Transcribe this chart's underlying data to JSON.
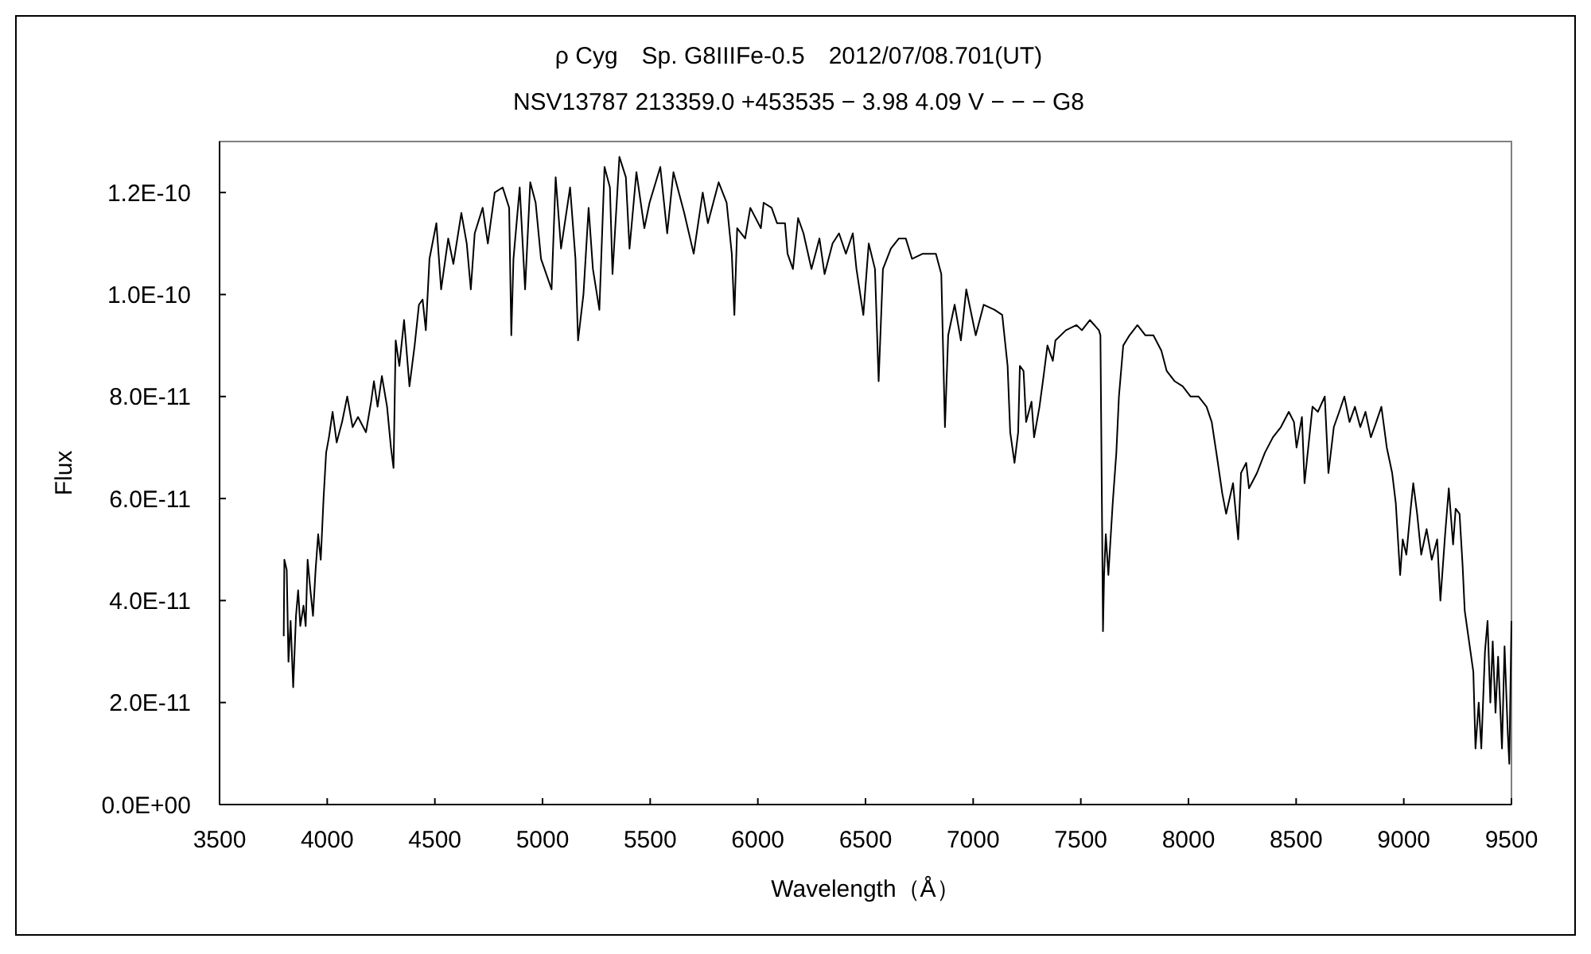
{
  "chart_data": {
    "type": "line",
    "title": "ρ Cyg　Sp. G8IIIFe-0.5　2012/07/08.701(UT)",
    "subtitle": "NSV13787 213359.0 +453535 − 3.98 4.09 V − − − G8",
    "xlabel": "Wavelength（Å）",
    "ylabel": "Flux",
    "xlim": [
      3500,
      9500
    ],
    "xticks": [
      3500,
      4000,
      4500,
      5000,
      5500,
      6000,
      6500,
      7000,
      7500,
      8000,
      8500,
      9000,
      9500
    ],
    "ylim": [
      0,
      1.3e-10
    ],
    "yticks": [
      {
        "value": 0,
        "label": "0.0E+00"
      },
      {
        "value": 2e-11,
        "label": "2.0E-11"
      },
      {
        "value": 4e-11,
        "label": "4.0E-11"
      },
      {
        "value": 6e-11,
        "label": "6.0E-11"
      },
      {
        "value": 8e-11,
        "label": "8.0E-11"
      },
      {
        "value": 1e-10,
        "label": "1.0E-10"
      },
      {
        "value": 1.2e-10,
        "label": "1.2E-10"
      }
    ],
    "x": [
      3798,
      3801,
      3812,
      3820,
      3830,
      3842,
      3855,
      3865,
      3875,
      3890,
      3900,
      3909,
      3922,
      3934,
      3946,
      3958,
      3970,
      3983,
      3995,
      4008,
      4025,
      4044,
      4069,
      4093,
      4118,
      4143,
      4180,
      4204,
      4217,
      4234,
      4254,
      4278,
      4296,
      4308,
      4318,
      4335,
      4357,
      4382,
      4406,
      4426,
      4443,
      4458,
      4475,
      4507,
      4529,
      4562,
      4586,
      4623,
      4648,
      4667,
      4685,
      4722,
      4746,
      4778,
      4815,
      4845,
      4855,
      4865,
      4894,
      4919,
      4943,
      4968,
      4993,
      5042,
      5061,
      5086,
      5128,
      5153,
      5165,
      5190,
      5214,
      5234,
      5264,
      5288,
      5313,
      5325,
      5357,
      5387,
      5404,
      5436,
      5473,
      5497,
      5547,
      5579,
      5608,
      5658,
      5702,
      5744,
      5768,
      5818,
      5855,
      5879,
      5891,
      5904,
      5941,
      5965,
      6014,
      6027,
      6064,
      6089,
      6126,
      6138,
      6163,
      6187,
      6212,
      6249,
      6286,
      6310,
      6347,
      6377,
      6409,
      6441,
      6458,
      6490,
      6515,
      6544,
      6561,
      6581,
      6618,
      6655,
      6687,
      6716,
      6766,
      6827,
      6852,
      6869,
      6884,
      6914,
      6943,
      6968,
      7012,
      7049,
      7099,
      7135,
      7160,
      7172,
      7192,
      7209,
      7217,
      7234,
      7246,
      7271,
      7283,
      7308,
      7327,
      7345,
      7370,
      7382,
      7431,
      7480,
      7505,
      7542,
      7584,
      7591,
      7599,
      7603,
      7608,
      7616,
      7628,
      7648,
      7665,
      7677,
      7697,
      7726,
      7763,
      7800,
      7837,
      7874,
      7899,
      7936,
      7973,
      8010,
      8047,
      8084,
      8108,
      8133,
      8157,
      8175,
      8207,
      8231,
      8244,
      8268,
      8281,
      8318,
      8355,
      8392,
      8429,
      8466,
      8490,
      8502,
      8527,
      8539,
      8576,
      8601,
      8633,
      8650,
      8675,
      8700,
      8724,
      8748,
      8773,
      8798,
      8822,
      8847,
      8872,
      8896,
      8921,
      8946,
      8963,
      8983,
      8995,
      9012,
      9032,
      9044,
      9062,
      9081,
      9106,
      9130,
      9155,
      9170,
      9192,
      9209,
      9229,
      9241,
      9259,
      9273,
      9283,
      9303,
      9323,
      9333,
      9348,
      9360,
      9377,
      9389,
      9402,
      9413,
      9426,
      9438,
      9456,
      9468,
      9483,
      9490,
      9500
    ],
    "series": [
      {
        "color": "#000000",
        "values": [
          3.3e-11,
          4.8e-11,
          4.6e-11,
          2.8e-11,
          3.6e-11,
          2.3e-11,
          3.7e-11,
          4.2e-11,
          3.5e-11,
          3.9e-11,
          3.5e-11,
          4.8e-11,
          4.2e-11,
          3.7e-11,
          4.6e-11,
          5.3e-11,
          4.8e-11,
          6e-11,
          6.9e-11,
          7.2e-11,
          7.7e-11,
          7.1e-11,
          7.5e-11,
          8e-11,
          7.4e-11,
          7.6e-11,
          7.3e-11,
          7.9e-11,
          8.3e-11,
          7.8e-11,
          8.4e-11,
          7.8e-11,
          7e-11,
          6.6e-11,
          9.1e-11,
          8.6e-11,
          9.5e-11,
          8.2e-11,
          9e-11,
          9.8e-11,
          9.9e-11,
          9.3e-11,
          1.07e-10,
          1.14e-10,
          1.01e-10,
          1.11e-10,
          1.06e-10,
          1.16e-10,
          1.1e-10,
          1.01e-10,
          1.12e-10,
          1.17e-10,
          1.1e-10,
          1.2e-10,
          1.21e-10,
          1.17e-10,
          9.2e-11,
          1.07e-10,
          1.21e-10,
          1.01e-10,
          1.22e-10,
          1.18e-10,
          1.07e-10,
          1.01e-10,
          1.23e-10,
          1.09e-10,
          1.21e-10,
          1.07e-10,
          9.1e-11,
          1e-10,
          1.17e-10,
          1.05e-10,
          9.7e-11,
          1.25e-10,
          1.21e-10,
          1.04e-10,
          1.27e-10,
          1.23e-10,
          1.09e-10,
          1.24e-10,
          1.13e-10,
          1.18e-10,
          1.25e-10,
          1.12e-10,
          1.24e-10,
          1.16e-10,
          1.08e-10,
          1.2e-10,
          1.14e-10,
          1.22e-10,
          1.18e-10,
          1.08e-10,
          9.6e-11,
          1.13e-10,
          1.11e-10,
          1.17e-10,
          1.13e-10,
          1.18e-10,
          1.17e-10,
          1.14e-10,
          1.14e-10,
          1.08e-10,
          1.05e-10,
          1.15e-10,
          1.12e-10,
          1.05e-10,
          1.11e-10,
          1.04e-10,
          1.1e-10,
          1.12e-10,
          1.08e-10,
          1.12e-10,
          1.05e-10,
          9.6e-11,
          1.1e-10,
          1.05e-10,
          8.3e-11,
          1.05e-10,
          1.09e-10,
          1.11e-10,
          1.11e-10,
          1.07e-10,
          1.08e-10,
          1.08e-10,
          1.04e-10,
          7.4e-11,
          9.2e-11,
          9.8e-11,
          9.1e-11,
          1.01e-10,
          9.2e-11,
          9.8e-11,
          9.7e-11,
          9.6e-11,
          8.6e-11,
          7.3e-11,
          6.7e-11,
          7.3e-11,
          8.6e-11,
          8.5e-11,
          7.5e-11,
          7.9e-11,
          7.2e-11,
          7.8e-11,
          8.4e-11,
          9e-11,
          8.7e-11,
          9.1e-11,
          9.3e-11,
          9.4e-11,
          9.3e-11,
          9.5e-11,
          9.3e-11,
          9.2e-11,
          5.4e-11,
          3.4e-11,
          4.5e-11,
          5.3e-11,
          4.5e-11,
          5.9e-11,
          6.9e-11,
          8e-11,
          9e-11,
          9.2e-11,
          9.4e-11,
          9.2e-11,
          9.2e-11,
          8.9e-11,
          8.5e-11,
          8.3e-11,
          8.2e-11,
          8e-11,
          8e-11,
          7.8e-11,
          7.5e-11,
          6.8e-11,
          6.1e-11,
          5.7e-11,
          6.3e-11,
          5.2e-11,
          6.5e-11,
          6.7e-11,
          6.2e-11,
          6.5e-11,
          6.9e-11,
          7.2e-11,
          7.4e-11,
          7.7e-11,
          7.5e-11,
          7e-11,
          7.6e-11,
          6.3e-11,
          7.8e-11,
          7.7e-11,
          8e-11,
          6.5e-11,
          7.4e-11,
          7.7e-11,
          8e-11,
          7.5e-11,
          7.8e-11,
          7.4e-11,
          7.7e-11,
          7.2e-11,
          7.5e-11,
          7.8e-11,
          7e-11,
          6.5e-11,
          5.9e-11,
          4.5e-11,
          5.2e-11,
          4.9e-11,
          5.8e-11,
          6.3e-11,
          5.7e-11,
          4.9e-11,
          5.4e-11,
          4.8e-11,
          5.2e-11,
          4e-11,
          5.3e-11,
          6.2e-11,
          5.1e-11,
          5.8e-11,
          5.7e-11,
          4.7e-11,
          3.8e-11,
          3.2e-11,
          2.6e-11,
          1.1e-11,
          2e-11,
          1.1e-11,
          3e-11,
          3.6e-11,
          2e-11,
          3.2e-11,
          1.8e-11,
          2.9e-11,
          1.1e-11,
          3.1e-11,
          1.4e-11,
          8e-12,
          3.6e-11
        ]
      }
    ]
  }
}
